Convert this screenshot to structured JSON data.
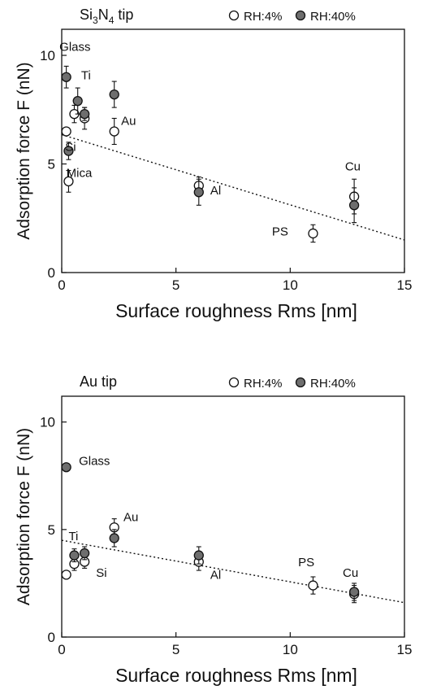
{
  "colors": {
    "ink": "#111111",
    "filled": "#6e6e6e",
    "open": "#ffffff",
    "paper": "#ffffff"
  },
  "chart_data": [
    {
      "type": "scatter",
      "title_parts": [
        "Si",
        "3",
        "N",
        "4",
        " tip"
      ],
      "xlabel": "Surface roughness  Rms [nm]",
      "ylabel": "Adsorption force F (nN)",
      "xlim": [
        0,
        15
      ],
      "ylim": [
        0,
        11.2
      ],
      "xticks": [
        0,
        5,
        10,
        15
      ],
      "yticks": [
        0,
        5,
        10
      ],
      "grid": false,
      "legend": {
        "placement": "top-right",
        "items": [
          {
            "marker": "open",
            "label": "RH:4%"
          },
          {
            "marker": "filled",
            "label": "RH:40%"
          }
        ]
      },
      "series": [
        {
          "name": "RH:4%",
          "marker": "open",
          "points": [
            {
              "x": 0.2,
              "y": 6.5,
              "err": 0
            },
            {
              "x": 0.3,
              "y": 4.2,
              "err": 0.5
            },
            {
              "x": 0.55,
              "y": 7.3,
              "err": 0.4
            },
            {
              "x": 1.0,
              "y": 7.1,
              "err": 0.5
            },
            {
              "x": 2.3,
              "y": 6.5,
              "err": 0.6
            },
            {
              "x": 6.0,
              "y": 4.0,
              "err": 0.4
            },
            {
              "x": 11.0,
              "y": 1.8,
              "err": 0.4
            },
            {
              "x": 12.8,
              "y": 3.5,
              "err": 0.8
            }
          ]
        },
        {
          "name": "RH:40%",
          "marker": "filled",
          "points": [
            {
              "x": 0.2,
              "y": 9.0,
              "err": 0.5
            },
            {
              "x": 0.3,
              "y": 5.6,
              "err": 0.4
            },
            {
              "x": 0.7,
              "y": 7.9,
              "err": 0.6
            },
            {
              "x": 1.0,
              "y": 7.3,
              "err": 0.3
            },
            {
              "x": 2.3,
              "y": 8.2,
              "err": 0.6
            },
            {
              "x": 6.0,
              "y": 3.7,
              "err": 0.6
            },
            {
              "x": 12.8,
              "y": 3.1,
              "err": 0.8
            }
          ]
        }
      ],
      "trendline": {
        "style": "dotted",
        "x": [
          0,
          15
        ],
        "y": [
          6.35,
          1.5
        ]
      },
      "annotations": [
        {
          "text": "Glass",
          "x": -0.1,
          "y": 10.2
        },
        {
          "text": "Ti",
          "x": 0.85,
          "y": 8.9
        },
        {
          "text": "Au",
          "x": 2.6,
          "y": 6.8
        },
        {
          "text": "Si",
          "x": 0.15,
          "y": 5.6
        },
        {
          "text": "Mica",
          "x": 0.2,
          "y": 4.4
        },
        {
          "text": "Al",
          "x": 6.5,
          "y": 3.6
        },
        {
          "text": "PS",
          "x": 9.2,
          "y": 1.7
        },
        {
          "text": "Cu",
          "x": 12.4,
          "y": 4.7
        }
      ]
    },
    {
      "type": "scatter",
      "title_parts": [
        "Au tip"
      ],
      "xlabel": "Surface roughness  Rms [nm]",
      "ylabel": "Adsorption force F (nN)",
      "xlim": [
        0,
        15
      ],
      "ylim": [
        0,
        11.2
      ],
      "xticks": [
        0,
        5,
        10,
        15
      ],
      "yticks": [
        0,
        5,
        10
      ],
      "grid": false,
      "legend": {
        "placement": "top-right",
        "items": [
          {
            "marker": "open",
            "label": "RH:4%"
          },
          {
            "marker": "filled",
            "label": "RH:40%"
          }
        ]
      },
      "series": [
        {
          "name": "RH:4%",
          "marker": "open",
          "points": [
            {
              "x": 0.2,
              "y": 2.9,
              "err": 0
            },
            {
              "x": 0.55,
              "y": 3.4,
              "err": 0.3
            },
            {
              "x": 1.0,
              "y": 3.5,
              "err": 0.3
            },
            {
              "x": 2.3,
              "y": 5.1,
              "err": 0.4
            },
            {
              "x": 6.0,
              "y": 3.5,
              "err": 0.4
            },
            {
              "x": 11.0,
              "y": 2.4,
              "err": 0.4
            },
            {
              "x": 12.8,
              "y": 2.0,
              "err": 0.4
            }
          ]
        },
        {
          "name": "RH:40%",
          "marker": "filled",
          "points": [
            {
              "x": 0.2,
              "y": 7.9,
              "err": 0
            },
            {
              "x": 0.55,
              "y": 3.8,
              "err": 0.3
            },
            {
              "x": 1.0,
              "y": 3.9,
              "err": 0.3
            },
            {
              "x": 2.3,
              "y": 4.6,
              "err": 0.4
            },
            {
              "x": 6.0,
              "y": 3.8,
              "err": 0.4
            },
            {
              "x": 12.8,
              "y": 2.1,
              "err": 0.4
            }
          ]
        }
      ],
      "trendline": {
        "style": "dotted",
        "x": [
          0,
          15
        ],
        "y": [
          4.5,
          1.6
        ]
      },
      "annotations": [
        {
          "text": "Glass",
          "x": 0.75,
          "y": 8.0
        },
        {
          "text": "Au",
          "x": 2.7,
          "y": 5.4
        },
        {
          "text": "Ti",
          "x": 0.3,
          "y": 4.5
        },
        {
          "text": "Si",
          "x": 1.5,
          "y": 2.8
        },
        {
          "text": "Al",
          "x": 6.5,
          "y": 2.7
        },
        {
          "text": "PS",
          "x": 10.35,
          "y": 3.3
        },
        {
          "text": "Cu",
          "x": 12.3,
          "y": 2.8
        }
      ]
    }
  ]
}
